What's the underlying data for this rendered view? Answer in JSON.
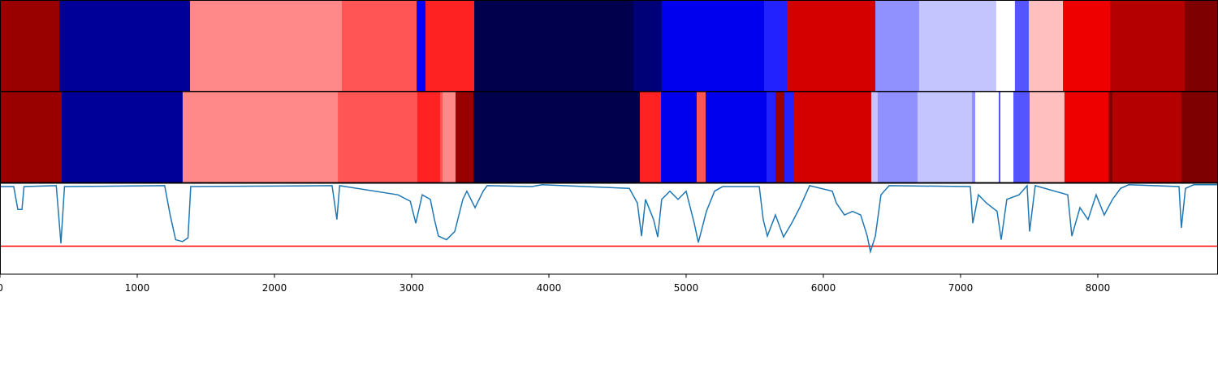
{
  "chart_data": [
    {
      "type": "strip",
      "xlim": [
        0,
        8876
      ],
      "segments": [
        {
          "start": 0,
          "end": 432,
          "color": "#990000"
        },
        {
          "start": 432,
          "end": 1385,
          "color": "#000099"
        },
        {
          "start": 1385,
          "end": 2491,
          "color": "#ff8888"
        },
        {
          "start": 2491,
          "end": 3036,
          "color": "#ff5555"
        },
        {
          "start": 3036,
          "end": 3101,
          "color": "#0000ff"
        },
        {
          "start": 3101,
          "end": 3456,
          "color": "#ff2222"
        },
        {
          "start": 3456,
          "end": 4615,
          "color": "#00004c"
        },
        {
          "start": 4615,
          "end": 4822,
          "color": "#000077"
        },
        {
          "start": 4822,
          "end": 5568,
          "color": "#0000ee"
        },
        {
          "start": 5568,
          "end": 5734,
          "color": "#2222ff"
        },
        {
          "start": 5734,
          "end": 6379,
          "color": "#d40000"
        },
        {
          "start": 6379,
          "end": 6698,
          "color": "#9090ff"
        },
        {
          "start": 6698,
          "end": 7260,
          "color": "#c4c4ff"
        },
        {
          "start": 7260,
          "end": 7396,
          "color": "#ffffff"
        },
        {
          "start": 7396,
          "end": 7497,
          "color": "#5555ff"
        },
        {
          "start": 7497,
          "end": 7746,
          "color": "#ffbfbf"
        },
        {
          "start": 7746,
          "end": 8089,
          "color": "#ee0000"
        },
        {
          "start": 8089,
          "end": 8633,
          "color": "#b50000"
        },
        {
          "start": 8633,
          "end": 8876,
          "color": "#7f0000"
        }
      ]
    },
    {
      "type": "strip",
      "xlim": [
        0,
        8876
      ],
      "segments": [
        {
          "start": 0,
          "end": 450,
          "color": "#990000"
        },
        {
          "start": 450,
          "end": 1331,
          "color": "#000099"
        },
        {
          "start": 1331,
          "end": 2462,
          "color": "#ff8888"
        },
        {
          "start": 2462,
          "end": 3041,
          "color": "#ff5555"
        },
        {
          "start": 3041,
          "end": 3207,
          "color": "#ff2222"
        },
        {
          "start": 3207,
          "end": 3225,
          "color": "#ff5555"
        },
        {
          "start": 3225,
          "end": 3320,
          "color": "#ff8888"
        },
        {
          "start": 3320,
          "end": 3450,
          "color": "#990000"
        },
        {
          "start": 3450,
          "end": 4663,
          "color": "#00004c"
        },
        {
          "start": 4663,
          "end": 4817,
          "color": "#ff2222"
        },
        {
          "start": 4817,
          "end": 5077,
          "color": "#0000ee"
        },
        {
          "start": 5077,
          "end": 5142,
          "color": "#ff5555"
        },
        {
          "start": 5142,
          "end": 5586,
          "color": "#0000ee"
        },
        {
          "start": 5586,
          "end": 5651,
          "color": "#2222ff"
        },
        {
          "start": 5651,
          "end": 5716,
          "color": "#990000"
        },
        {
          "start": 5716,
          "end": 5787,
          "color": "#2222ff"
        },
        {
          "start": 5787,
          "end": 6349,
          "color": "#d40000"
        },
        {
          "start": 6349,
          "end": 6396,
          "color": "#c4c4ff"
        },
        {
          "start": 6396,
          "end": 6686,
          "color": "#9090ff"
        },
        {
          "start": 6686,
          "end": 7083,
          "color": "#c4c4ff"
        },
        {
          "start": 7083,
          "end": 7107,
          "color": "#9090ff"
        },
        {
          "start": 7107,
          "end": 7278,
          "color": "#ffffff"
        },
        {
          "start": 7278,
          "end": 7290,
          "color": "#5555ff"
        },
        {
          "start": 7290,
          "end": 7385,
          "color": "#ffffff"
        },
        {
          "start": 7385,
          "end": 7503,
          "color": "#5555ff"
        },
        {
          "start": 7503,
          "end": 7757,
          "color": "#ffbfbf"
        },
        {
          "start": 7757,
          "end": 8077,
          "color": "#ee0000"
        },
        {
          "start": 8077,
          "end": 8107,
          "color": "#7f0000"
        },
        {
          "start": 8107,
          "end": 8609,
          "color": "#b50000"
        },
        {
          "start": 8609,
          "end": 8876,
          "color": "#7f0000"
        }
      ]
    },
    {
      "type": "line",
      "xlim": [
        0,
        8876
      ],
      "ylim": [
        0,
        1
      ],
      "xticks": [
        0,
        1000,
        2000,
        3000,
        4000,
        5000,
        6000,
        7000,
        8000
      ],
      "threshold": 0.31,
      "threshold_color": "#ff0000",
      "series": [
        {
          "color": "#1f77b4",
          "x": [
            0,
            100,
            130,
            160,
            175,
            410,
            444,
            470,
            1200,
            1240,
            1280,
            1330,
            1370,
            1390,
            2420,
            2455,
            2475,
            2900,
            2990,
            3030,
            3077,
            3136,
            3166,
            3195,
            3254,
            3314,
            3373,
            3402,
            3462,
            3521,
            3550,
            3876,
            3950,
            4586,
            4645,
            4675,
            4704,
            4763,
            4793,
            4822,
            4882,
            4941,
            5000,
            5059,
            5089,
            5148,
            5207,
            5266,
            5533,
            5562,
            5592,
            5651,
            5710,
            5769,
            5828,
            5900,
            6065,
            6095,
            6154,
            6213,
            6272,
            6320,
            6343,
            6379,
            6420,
            6479,
            7071,
            7089,
            7130,
            7189,
            7266,
            7296,
            7337,
            7426,
            7485,
            7503,
            7544,
            7781,
            7811,
            7870,
            7929,
            7988,
            8047,
            8107,
            8166,
            8225,
            8592,
            8609,
            8639,
            8698,
            8876
          ],
          "values": [
            0.96,
            0.96,
            0.71,
            0.71,
            0.96,
            0.97,
            0.34,
            0.96,
            0.97,
            0.65,
            0.38,
            0.36,
            0.4,
            0.96,
            0.97,
            0.6,
            0.97,
            0.87,
            0.8,
            0.56,
            0.87,
            0.82,
            0.6,
            0.42,
            0.38,
            0.47,
            0.82,
            0.91,
            0.73,
            0.91,
            0.97,
            0.96,
            0.98,
            0.94,
            0.78,
            0.42,
            0.82,
            0.6,
            0.41,
            0.82,
            0.91,
            0.82,
            0.91,
            0.56,
            0.35,
            0.69,
            0.91,
            0.96,
            0.96,
            0.6,
            0.42,
            0.65,
            0.41,
            0.56,
            0.73,
            0.97,
            0.91,
            0.78,
            0.65,
            0.69,
            0.65,
            0.42,
            0.25,
            0.42,
            0.87,
            0.97,
            0.96,
            0.56,
            0.87,
            0.78,
            0.69,
            0.38,
            0.82,
            0.87,
            0.97,
            0.47,
            0.97,
            0.87,
            0.42,
            0.73,
            0.6,
            0.87,
            0.65,
            0.82,
            0.94,
            0.98,
            0.96,
            0.51,
            0.94,
            0.98,
            0.98
          ]
        }
      ]
    }
  ]
}
